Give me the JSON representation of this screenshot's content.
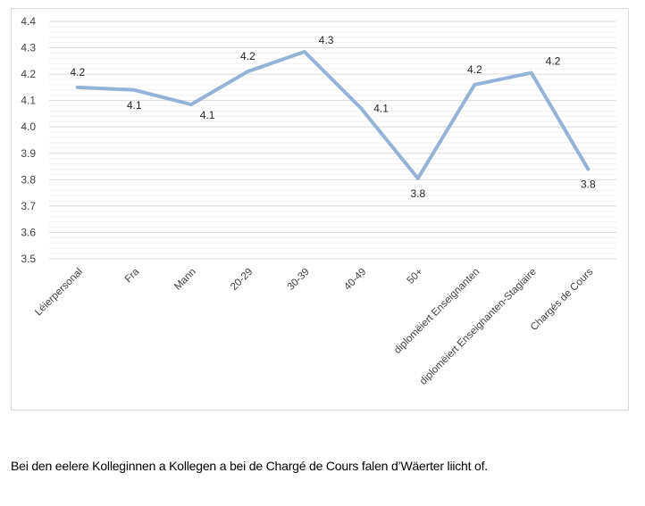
{
  "chart_data": {
    "type": "line",
    "categories": [
      "Léierpersonal",
      "Fra",
      "Mann",
      "20-29",
      "30-39",
      "40-49",
      "50+",
      "diplomëiert Enseignanten",
      "diplomëiert Enseignanten-Stagiaire",
      "Chargés de Cours"
    ],
    "values": [
      4.15,
      4.14,
      4.085,
      4.21,
      4.285,
      4.07,
      3.805,
      4.16,
      4.205,
      3.84
    ],
    "data_labels": [
      "4.2",
      "4.1",
      "4.1",
      "4.2",
      "4.3",
      "4.1",
      "3.8",
      "4.2",
      "4.2",
      "3.8"
    ],
    "ylim": [
      3.5,
      4.4
    ],
    "y_ticks": [
      "3.5",
      "3.6",
      "3.7",
      "3.8",
      "3.9",
      "4.0",
      "4.1",
      "4.2",
      "4.3",
      "4.4"
    ],
    "line_color": "#95b3d7",
    "grid": true,
    "title": "",
    "xlabel": "",
    "ylabel": ""
  },
  "caption": "Bei den eelere Kolleginnen a Kollegen a bei de Chargé de Cours falen d’Wäerter liicht of."
}
